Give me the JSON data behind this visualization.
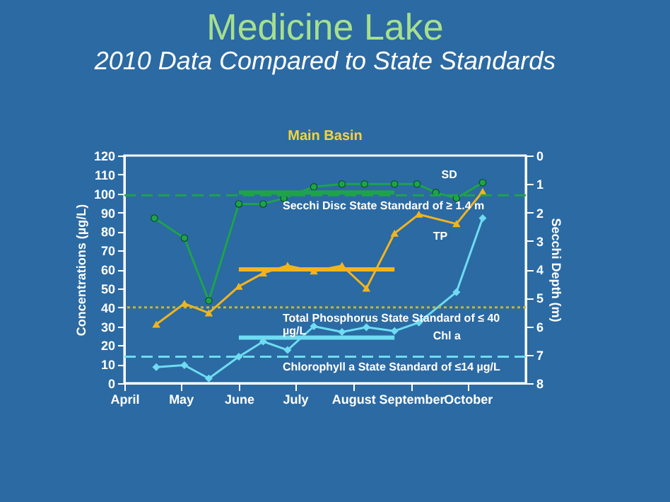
{
  "chart_data": {
    "type": "line",
    "title": "Medicine Lake",
    "subtitle": "2010 Data Compared to State Standards",
    "annotations": [
      "Main Basin"
    ],
    "ylabel": "Concentrations (µg/L)",
    "y2label": "Secchi Depth (m)",
    "xlim": [
      "2010-04-01",
      "2010-11-01"
    ],
    "xticks": [
      {
        "value": "2010-04-01",
        "label": "April"
      },
      {
        "value": "2010-05-01",
        "label": "May"
      },
      {
        "value": "2010-06-01",
        "label": "June"
      },
      {
        "value": "2010-07-01",
        "label": "July"
      },
      {
        "value": "2010-08-01",
        "label": "August"
      },
      {
        "value": "2010-09-01",
        "label": "September"
      },
      {
        "value": "2010-10-01",
        "label": "October"
      }
    ],
    "ylim": [
      0,
      120
    ],
    "yticks": [
      0,
      10,
      20,
      30,
      40,
      50,
      60,
      70,
      80,
      90,
      100,
      110,
      120
    ],
    "y2lim": [
      8,
      0
    ],
    "y2ticks": [
      0,
      1,
      2,
      3,
      4,
      5,
      6,
      7,
      8
    ],
    "grid": false,
    "series": [
      {
        "name": "SD",
        "axis": "y2",
        "color": "#1fa34a",
        "marker": "circle",
        "x": [
          "2010-04-17",
          "2010-05-03",
          "2010-05-16",
          "2010-06-01",
          "2010-06-14",
          "2010-06-25",
          "2010-07-11",
          "2010-07-26",
          "2010-08-07",
          "2010-08-23",
          "2010-09-04",
          "2010-09-14",
          "2010-09-25",
          "2010-10-09"
        ],
        "values": [
          2.2,
          2.9,
          5.1,
          1.7,
          1.7,
          1.5,
          1.1,
          1.0,
          1.0,
          1.0,
          1.0,
          1.3,
          1.5,
          0.95
        ]
      },
      {
        "name": "TP",
        "axis": "y",
        "color": "#f2b41e",
        "marker": "triangle",
        "x": [
          "2010-04-18",
          "2010-05-03",
          "2010-05-16",
          "2010-06-01",
          "2010-06-14",
          "2010-06-27",
          "2010-07-11",
          "2010-07-26",
          "2010-08-08",
          "2010-08-23",
          "2010-09-05",
          "2010-09-25",
          "2010-10-09"
        ],
        "values": [
          31,
          42,
          37,
          51,
          58,
          62,
          59,
          62,
          50,
          79,
          89,
          84,
          101
        ]
      },
      {
        "name": "Chl a",
        "axis": "y",
        "color": "#6fdcf2",
        "marker": "diamond",
        "x": [
          "2010-04-18",
          "2010-05-03",
          "2010-05-16",
          "2010-06-01",
          "2010-06-14",
          "2010-06-27",
          "2010-07-11",
          "2010-07-26",
          "2010-08-08",
          "2010-08-23",
          "2010-09-05",
          "2010-09-25",
          "2010-10-09"
        ],
        "values": [
          8.5,
          9.5,
          2.5,
          14,
          22,
          17.5,
          30,
          27,
          29.5,
          27.5,
          32,
          48,
          87
        ]
      },
      {
        "axis": "y2",
        "color": "#1fa34a",
        "marker": "none",
        "x": [
          "2010-06-01",
          "2010-08-23"
        ],
        "values": [
          1.3,
          1.3
        ]
      },
      {
        "axis": "y",
        "color": "#f2b41e",
        "marker": "none",
        "x": [
          "2010-06-01",
          "2010-08-23"
        ],
        "values": [
          60,
          60
        ]
      },
      {
        "axis": "y",
        "color": "#6fdcf2",
        "marker": "none",
        "x": [
          "2010-06-01",
          "2010-08-23"
        ],
        "values": [
          24,
          24
        ]
      }
    ],
    "ref_lines": [
      {
        "axis": "y2",
        "value": 1.4,
        "label": "Secchi Disc State Standard of ≥ 1.4 m",
        "color": "#1fa34a",
        "line_style": "dashed"
      },
      {
        "axis": "y",
        "value": 40,
        "label": "Total Phosphorus State Standard of ≤ 40 µg/L",
        "color": "#c9b62a",
        "line_style": "dotted"
      },
      {
        "axis": "y",
        "value": 14,
        "label": "Chlorophyll a State Standard of ≤14 µg/L",
        "color": "#6fdcf2",
        "line_style": "dashed"
      }
    ]
  }
}
